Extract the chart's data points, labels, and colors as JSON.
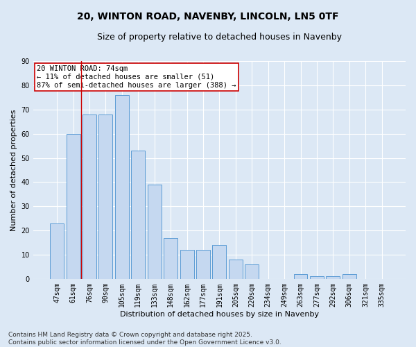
{
  "title": "20, WINTON ROAD, NAVENBY, LINCOLN, LN5 0TF",
  "subtitle": "Size of property relative to detached houses in Navenby",
  "xlabel": "Distribution of detached houses by size in Navenby",
  "ylabel": "Number of detached properties",
  "categories": [
    "47sqm",
    "61sqm",
    "76sqm",
    "90sqm",
    "105sqm",
    "119sqm",
    "133sqm",
    "148sqm",
    "162sqm",
    "177sqm",
    "191sqm",
    "205sqm",
    "220sqm",
    "234sqm",
    "249sqm",
    "263sqm",
    "277sqm",
    "292sqm",
    "306sqm",
    "321sqm",
    "335sqm"
  ],
  "values": [
    23,
    60,
    68,
    68,
    76,
    53,
    39,
    17,
    12,
    12,
    14,
    8,
    6,
    0,
    0,
    2,
    1,
    1,
    2,
    0,
    0
  ],
  "bar_color": "#c5d8f0",
  "bar_edge_color": "#5b9bd5",
  "vline_x_index": 1.5,
  "vline_color": "#cc0000",
  "annotation_text": "20 WINTON ROAD: 74sqm\n← 11% of detached houses are smaller (51)\n87% of semi-detached houses are larger (388) →",
  "annotation_box_color": "#ffffff",
  "annotation_box_edge_color": "#cc0000",
  "ylim": [
    0,
    90
  ],
  "yticks": [
    0,
    10,
    20,
    30,
    40,
    50,
    60,
    70,
    80,
    90
  ],
  "footnote": "Contains HM Land Registry data © Crown copyright and database right 2025.\nContains public sector information licensed under the Open Government Licence v3.0.",
  "background_color": "#dce8f5",
  "plot_background": "#dce8f5",
  "grid_color": "#ffffff",
  "title_fontsize": 10,
  "subtitle_fontsize": 9,
  "ylabel_fontsize": 8,
  "xlabel_fontsize": 8,
  "tick_fontsize": 7,
  "annotation_fontsize": 7.5,
  "footnote_fontsize": 6.5
}
